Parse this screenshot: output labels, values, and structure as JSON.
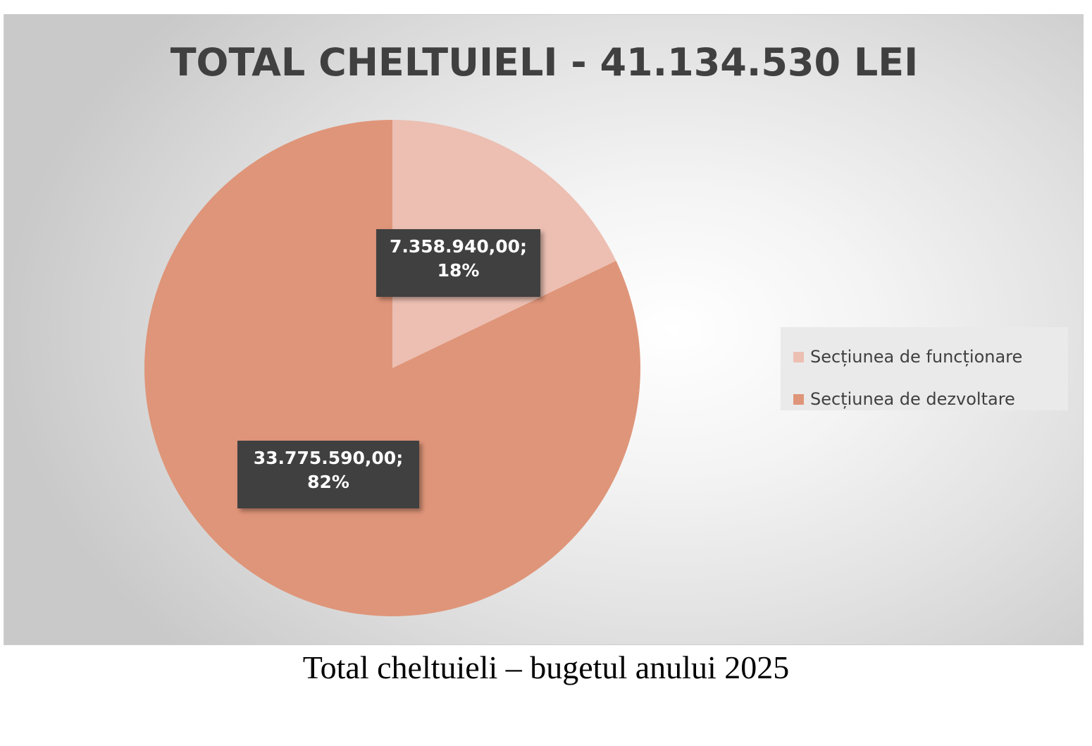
{
  "chart_data": {
    "type": "pie",
    "title": "TOTAL CHELTUIELI - 41.134.530 LEI",
    "slices": [
      {
        "name": "Secțiunea de funcționare",
        "value": 7358940.0,
        "percent": 18,
        "value_label": "7.358.940,00;",
        "percent_label": "18%",
        "color": "#ecbfb2"
      },
      {
        "name": "Secțiunea de dezvoltare",
        "value": 33775590.0,
        "percent": 82,
        "value_label": "33.775.590,00;",
        "percent_label": "82%",
        "color": "#df9579"
      }
    ],
    "legend_position": "right"
  },
  "caption": "Total cheltuieli – bugetul anului 2025"
}
